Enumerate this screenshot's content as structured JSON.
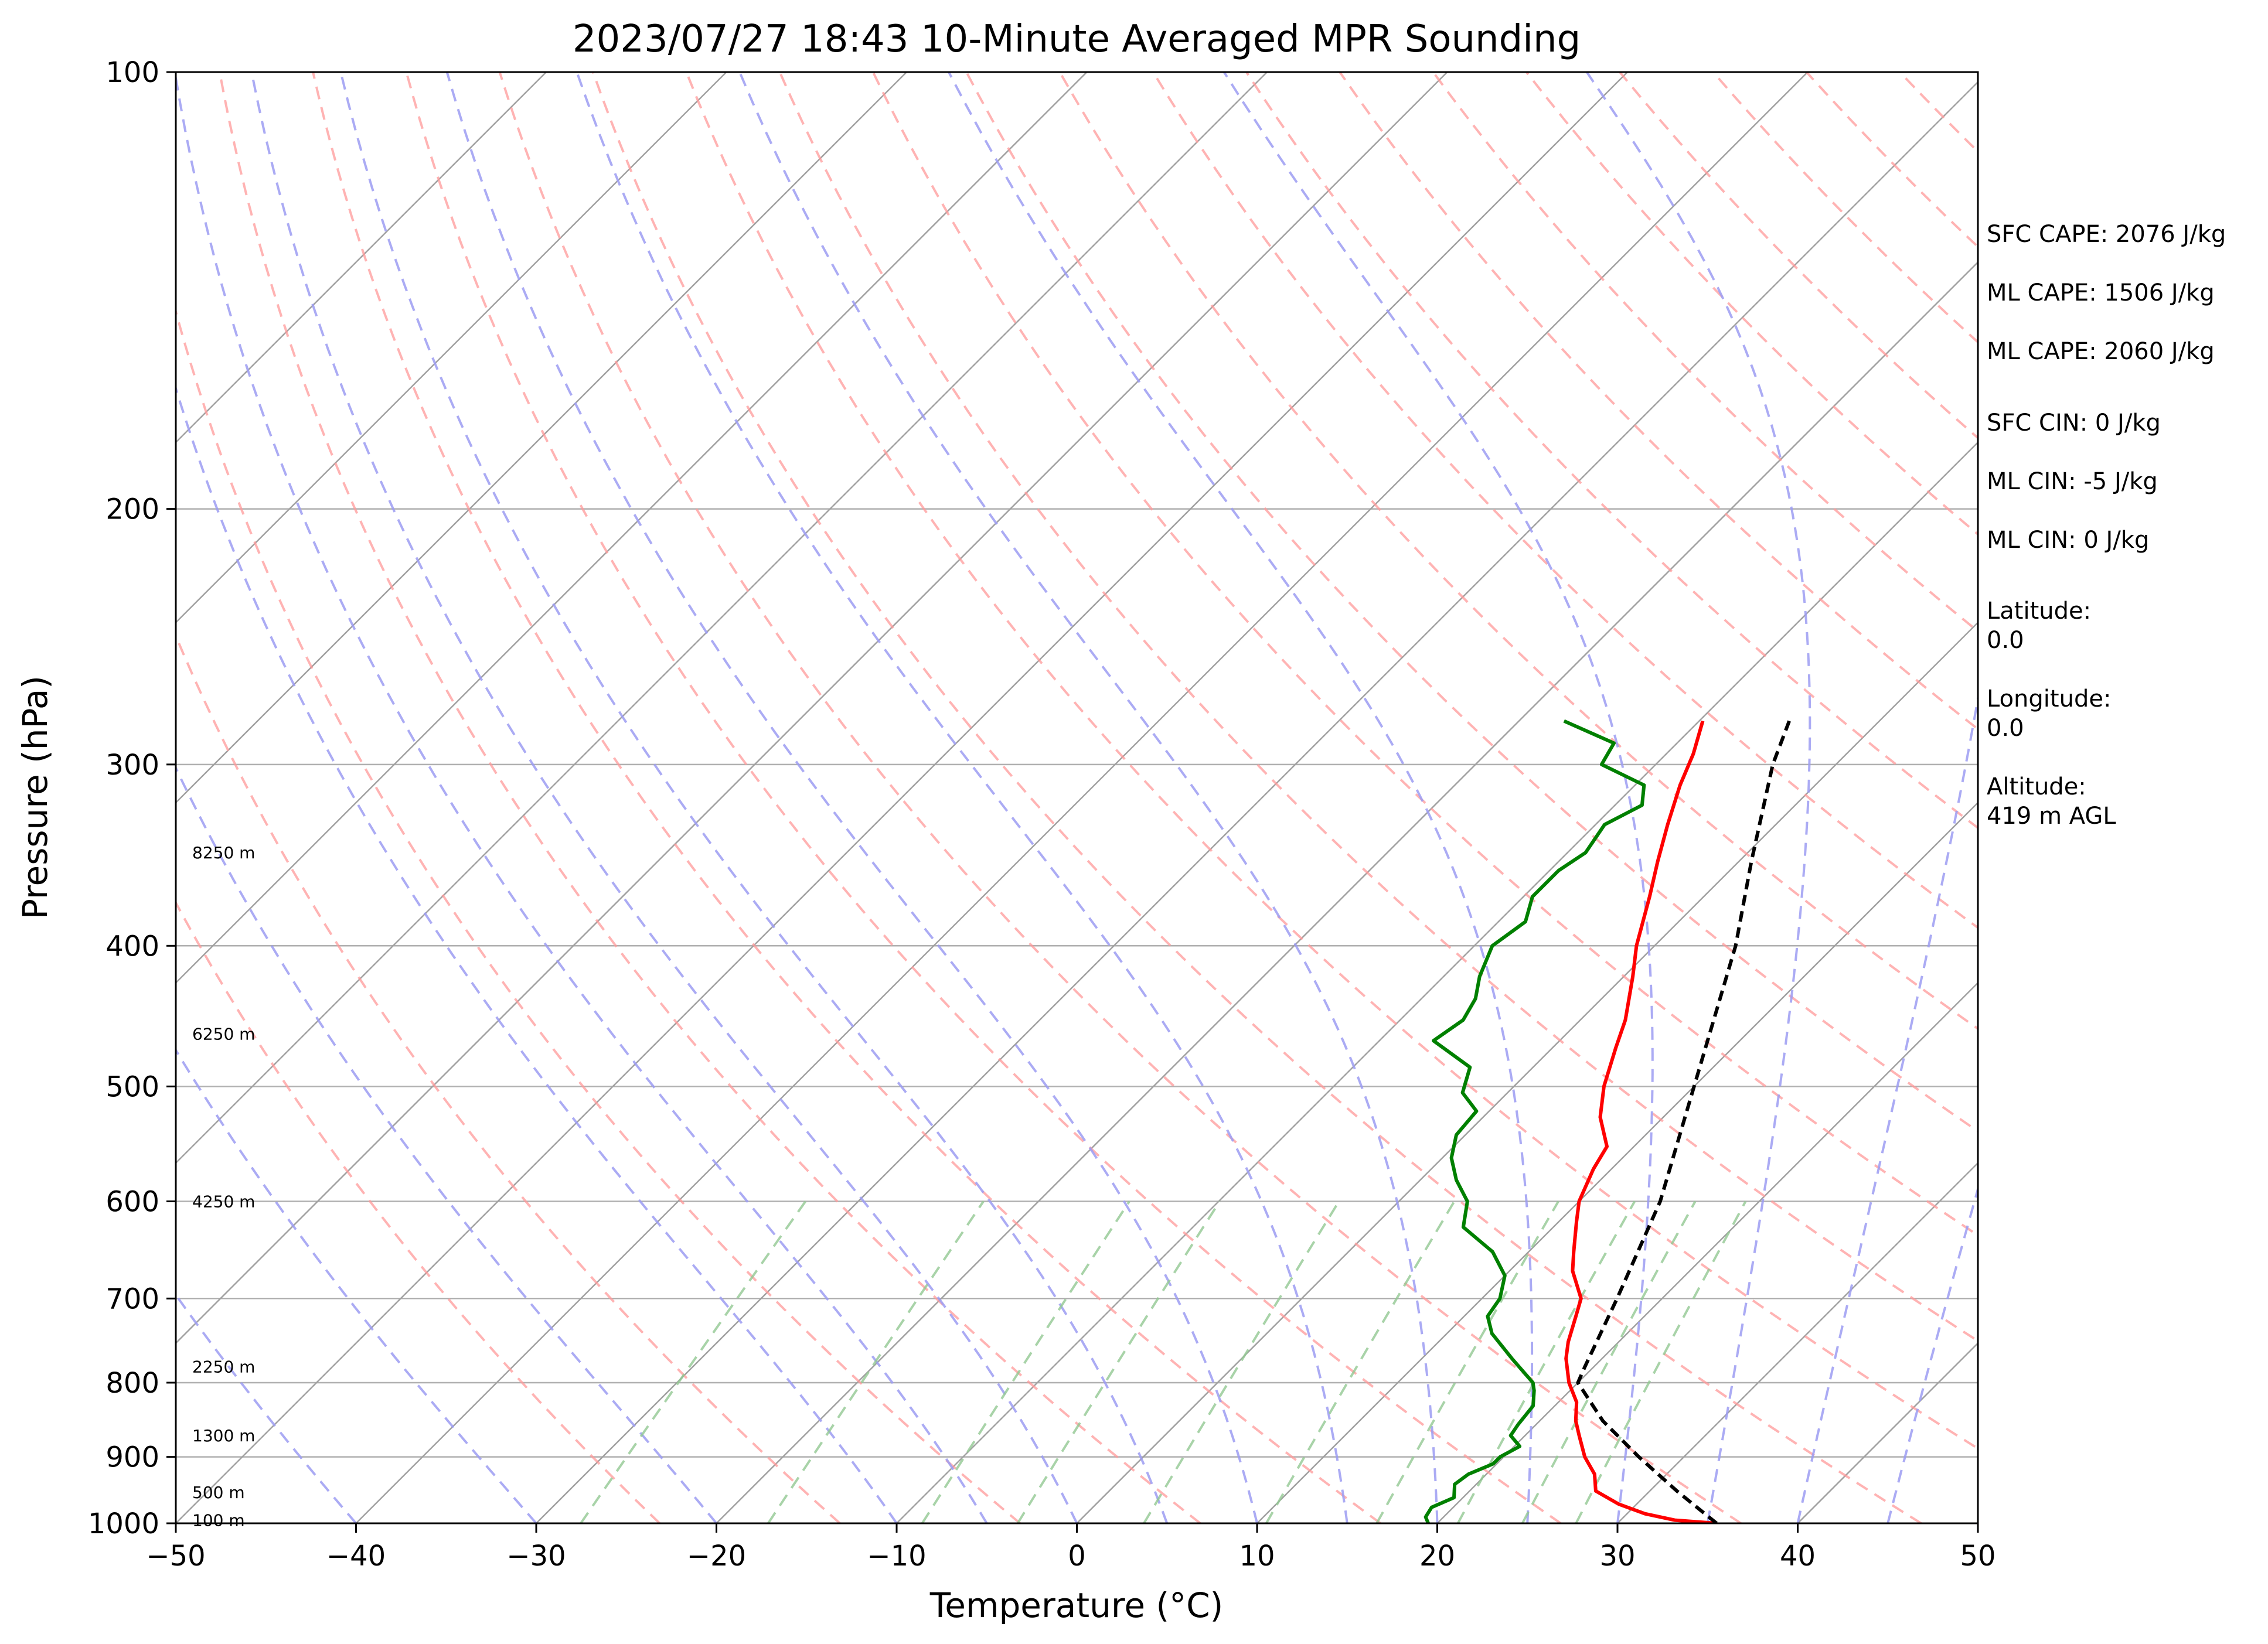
{
  "chart_data": {
    "type": "skew-t log-p sounding",
    "title": "2023/07/27 18:43 10-Minute Averaged MPR Sounding",
    "xlabel": "Temperature (°C)",
    "ylabel": "Pressure (hPa)",
    "xlim": [
      -50,
      50
    ],
    "ylim": [
      1000,
      100
    ],
    "y_scale": "log",
    "x_ticks": [
      -50,
      -40,
      -30,
      -20,
      -10,
      0,
      10,
      20,
      30,
      40,
      50
    ],
    "x_tick_labels": [
      "−50",
      "−40",
      "−30",
      "−20",
      "−10",
      "0",
      "10",
      "20",
      "30",
      "40",
      "50"
    ],
    "y_ticks": [
      1000,
      900,
      800,
      700,
      600,
      500,
      400,
      300,
      200,
      100
    ],
    "y_tick_labels": [
      "1000",
      "900",
      "800",
      "700",
      "600",
      "500",
      "400",
      "300",
      "200",
      "100"
    ],
    "grid": true,
    "series": [
      {
        "kind": "temperature",
        "color": "#ff0000",
        "points": [
          [
            1000,
            35.5
          ],
          [
            995,
            33.0
          ],
          [
            985,
            31.0
          ],
          [
            970,
            29.0
          ],
          [
            950,
            27.0
          ],
          [
            925,
            26.0
          ],
          [
            900,
            24.5
          ],
          [
            870,
            23.0
          ],
          [
            850,
            22.0
          ],
          [
            825,
            21.0
          ],
          [
            800,
            19.5
          ],
          [
            770,
            18.0
          ],
          [
            750,
            17.2
          ],
          [
            720,
            16.2
          ],
          [
            700,
            15.5
          ],
          [
            670,
            13.5
          ],
          [
            650,
            12.5
          ],
          [
            620,
            11.0
          ],
          [
            600,
            10.0
          ],
          [
            570,
            9.0
          ],
          [
            550,
            8.5
          ],
          [
            525,
            6.5
          ],
          [
            500,
            5.0
          ],
          [
            470,
            3.5
          ],
          [
            450,
            2.5
          ],
          [
            420,
            0.5
          ],
          [
            400,
            -1.0
          ],
          [
            370,
            -3.0
          ],
          [
            350,
            -4.5
          ],
          [
            330,
            -6.0
          ],
          [
            310,
            -7.5
          ],
          [
            295,
            -8.5
          ],
          [
            280,
            -9.8
          ]
        ]
      },
      {
        "kind": "dewpoint",
        "color": "#008000",
        "points": [
          [
            1000,
            19.5
          ],
          [
            990,
            19.0
          ],
          [
            975,
            18.8
          ],
          [
            960,
            19.5
          ],
          [
            940,
            18.8
          ],
          [
            925,
            19.0
          ],
          [
            910,
            19.8
          ],
          [
            900,
            19.8
          ],
          [
            885,
            20.3
          ],
          [
            870,
            19.2
          ],
          [
            855,
            19.0
          ],
          [
            830,
            18.8
          ],
          [
            810,
            18.0
          ],
          [
            800,
            17.5
          ],
          [
            770,
            15.0
          ],
          [
            740,
            12.5
          ],
          [
            720,
            11.3
          ],
          [
            700,
            11.0
          ],
          [
            675,
            10.0
          ],
          [
            650,
            8.0
          ],
          [
            625,
            5.0
          ],
          [
            600,
            3.8
          ],
          [
            580,
            2.0
          ],
          [
            560,
            0.5
          ],
          [
            540,
            -0.5
          ],
          [
            520,
            -0.7
          ],
          [
            505,
            -2.5
          ],
          [
            485,
            -3.5
          ],
          [
            465,
            -7.0
          ],
          [
            450,
            -6.5
          ],
          [
            435,
            -7.0
          ],
          [
            420,
            -8.0
          ],
          [
            400,
            -9.0
          ],
          [
            385,
            -8.5
          ],
          [
            370,
            -9.5
          ],
          [
            355,
            -9.5
          ],
          [
            345,
            -9.0
          ],
          [
            330,
            -9.5
          ],
          [
            320,
            -8.5
          ],
          [
            310,
            -9.5
          ],
          [
            300,
            -13.0
          ],
          [
            290,
            -13.5
          ],
          [
            280,
            -17.5
          ]
        ]
      },
      {
        "kind": "parcel profile",
        "color": "#000000",
        "style": "dashed",
        "points": [
          [
            1000,
            35.5
          ],
          [
            950,
            31.5
          ],
          [
            900,
            27.5
          ],
          [
            850,
            23.5
          ],
          [
            800,
            20.0
          ],
          [
            780,
            19.5
          ],
          [
            700,
            17.5
          ],
          [
            600,
            14.5
          ],
          [
            500,
            10.0
          ],
          [
            400,
            4.5
          ],
          [
            350,
            0.7
          ],
          [
            300,
            -3.5
          ],
          [
            280,
            -5.0
          ]
        ]
      }
    ],
    "reference_lines": {
      "isotherms_deg_c": [
        -110,
        -100,
        -90,
        -80,
        -70,
        -60,
        -50,
        -40,
        -30,
        -20,
        -10,
        0,
        10,
        20,
        30,
        40,
        50
      ],
      "dry_adiabats_theta_k": [
        250,
        260,
        270,
        280,
        290,
        300,
        310,
        320,
        330,
        340,
        350,
        360,
        370,
        380,
        390,
        400,
        410,
        420,
        430,
        440,
        450,
        460,
        470
      ],
      "moist_adiabats_start_c": [
        -40,
        -30,
        -20,
        -10,
        -5,
        0,
        5,
        10,
        15,
        20,
        25,
        30,
        35,
        40,
        45,
        50
      ],
      "mixing_ratio_g_per_kg": [
        0.4,
        1,
        2,
        3,
        5,
        8,
        12,
        16,
        20,
        24
      ],
      "colors": {
        "isotherm": "#a0a0a0",
        "dry_adiabat": "#ff9a9a",
        "moist_adiabat": "#9c9cf2",
        "mixing_ratio": "#92c892"
      }
    },
    "height_labels": [
      {
        "label": "8250 m",
        "pressure": 345
      },
      {
        "label": "6250 m",
        "pressure": 460
      },
      {
        "label": "4250 m",
        "pressure": 600
      },
      {
        "label": "2250 m",
        "pressure": 780
      },
      {
        "label": "1300 m",
        "pressure": 870
      },
      {
        "label": "500 m",
        "pressure": 952
      },
      {
        "label": "100 m",
        "pressure": 995
      }
    ]
  },
  "side_panel": {
    "items": [
      {
        "name": "sfc-cape",
        "lines": [
          "SFC CAPE: 2076 J/kg"
        ]
      },
      {
        "name": "ml-cape-1",
        "lines": [
          "ML CAPE: 1506 J/kg"
        ]
      },
      {
        "name": "ml-cape-2",
        "lines": [
          "ML CAPE: 2060 J/kg"
        ]
      },
      {
        "name": "sfc-cin",
        "lines": [
          "SFC CIN: 0 J/kg"
        ]
      },
      {
        "name": "ml-cin-1",
        "lines": [
          "ML CIN: -5 J/kg"
        ]
      },
      {
        "name": "ml-cin-2",
        "lines": [
          "ML CIN: 0 J/kg"
        ]
      },
      {
        "name": "latitude",
        "lines": [
          "Latitude:",
          "0.0"
        ]
      },
      {
        "name": "longitude",
        "lines": [
          "Longitude:",
          "0.0"
        ]
      },
      {
        "name": "altitude",
        "lines": [
          "Altitude:",
          "419 m AGL"
        ]
      }
    ]
  }
}
